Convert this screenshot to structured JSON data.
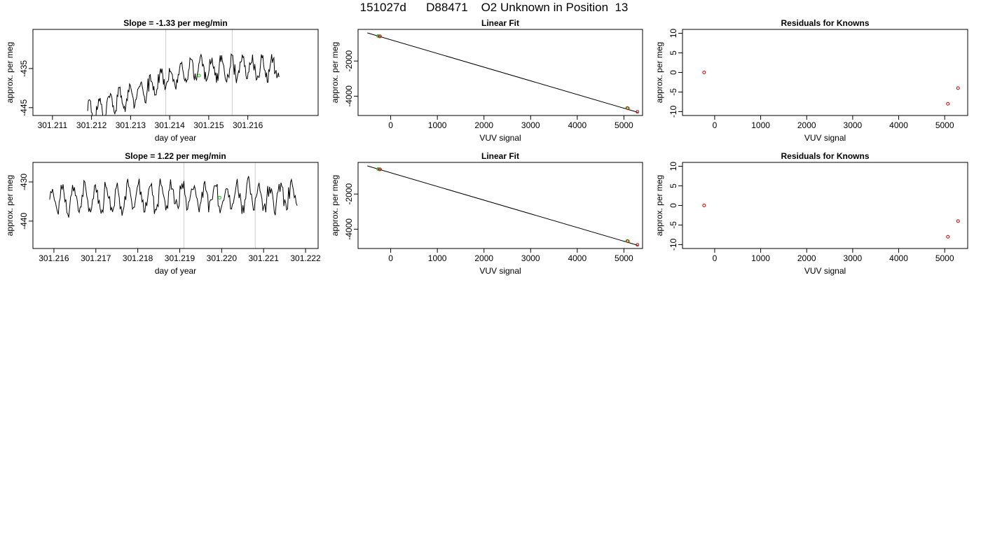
{
  "page": {
    "title": "151027d      D88471    O2 Unknown in Position  13"
  },
  "chart_data": [
    {
      "id": "p1",
      "type": "line",
      "title": "Slope =  -1.33  per meg/min",
      "xlabel": "day of year",
      "ylabel": "approx. per meg",
      "xlim": [
        301.2105,
        301.2178
      ],
      "ylim": [
        -447,
        -425
      ],
      "xticks": [
        "301.211",
        "301.212",
        "301.213",
        "301.214",
        "301.215",
        "301.216"
      ],
      "yticks": [
        "-445",
        "-435"
      ],
      "vlines": [
        301.2139,
        301.2156
      ],
      "series": [
        {
          "x_start": 301.2119,
          "x_end": 301.2168,
          "base_start": -446.5,
          "base_end": -435,
          "amp": 2.6,
          "period": 0.00013,
          "seed": 1,
          "color": "#000000"
        }
      ],
      "markers": [
        {
          "x": 301.21475,
          "y": -436.8,
          "color": "#00cc00"
        }
      ]
    },
    {
      "id": "p2",
      "type": "scatter",
      "title": "Linear Fit",
      "xlabel": "VUV signal",
      "ylabel": "approx. per meg",
      "xlim": [
        -700,
        5400
      ],
      "ylim": [
        -5100,
        -200
      ],
      "xticks": [
        "0",
        "1000",
        "2000",
        "3000",
        "4000",
        "5000"
      ],
      "yticks": [
        "-2000",
        "-4000"
      ],
      "line": {
        "x": [
          -500,
          5300
        ],
        "y": [
          -400,
          -4920
        ]
      },
      "points": [
        {
          "x": -270,
          "y": -580,
          "color": "#00cc00"
        },
        {
          "x": -240,
          "y": -600,
          "color": "#00cc00"
        },
        {
          "x": -230,
          "y": -595,
          "color": "#cc0000"
        },
        {
          "x": 5070,
          "y": -4670,
          "color": "#00cc00"
        },
        {
          "x": 5085,
          "y": -4690,
          "color": "#cc0000"
        },
        {
          "x": 5290,
          "y": -4890,
          "color": "#cc0000"
        }
      ]
    },
    {
      "id": "p3",
      "type": "scatter",
      "title": "Residuals for Knowns",
      "xlabel": "VUV signal",
      "ylabel": "approx. per meg",
      "xlim": [
        -700,
        5500
      ],
      "ylim": [
        -11,
        11
      ],
      "xticks": [
        "0",
        "1000",
        "2000",
        "3000",
        "4000",
        "5000"
      ],
      "yticks": [
        "-10",
        "-5",
        "0",
        "5",
        "10"
      ],
      "points": [
        {
          "x": -230,
          "y": 0,
          "color": "#cc0000"
        },
        {
          "x": 5070,
          "y": -8,
          "color": "#cc0000"
        },
        {
          "x": 5290,
          "y": -4,
          "color": "#cc0000"
        }
      ]
    },
    {
      "id": "p4",
      "type": "line",
      "title": "Slope =  1.22  per meg/min",
      "xlabel": "day of year",
      "ylabel": "approx. per meg",
      "xlim": [
        301.2155,
        301.2223
      ],
      "ylim": [
        -447,
        -425
      ],
      "xticks": [
        "301.216",
        "301.217",
        "301.218",
        "301.219",
        "301.220",
        "301.221",
        "301.222"
      ],
      "yticks": [
        "-440",
        "-430"
      ],
      "vlines": [
        301.2191,
        301.2208
      ],
      "series": [
        {
          "x_start": 301.2159,
          "x_end": 301.2218,
          "base_start": -434.5,
          "base_end": -433.5,
          "amp": 3.3,
          "period": 0.00013,
          "seed": 7,
          "color": "#000000"
        }
      ],
      "markers": [
        {
          "x": 301.21995,
          "y": -434,
          "color": "#00cc00"
        }
      ]
    },
    {
      "id": "p5",
      "type": "scatter",
      "title": "Linear Fit",
      "xlabel": "VUV signal",
      "ylabel": "approx. per meg",
      "xlim": [
        -700,
        5400
      ],
      "ylim": [
        -5100,
        -200
      ],
      "xticks": [
        "0",
        "1000",
        "2000",
        "3000",
        "4000",
        "5000"
      ],
      "yticks": [
        "-2000",
        "-4000"
      ],
      "line": {
        "x": [
          -500,
          5300
        ],
        "y": [
          -400,
          -4920
        ]
      },
      "points": [
        {
          "x": -270,
          "y": -580,
          "color": "#00cc00"
        },
        {
          "x": -240,
          "y": -600,
          "color": "#00cc00"
        },
        {
          "x": -230,
          "y": -595,
          "color": "#cc0000"
        },
        {
          "x": 5070,
          "y": -4670,
          "color": "#00cc00"
        },
        {
          "x": 5085,
          "y": -4690,
          "color": "#cc0000"
        },
        {
          "x": 5290,
          "y": -4890,
          "color": "#cc0000"
        }
      ]
    },
    {
      "id": "p6",
      "type": "scatter",
      "title": "Residuals for Knowns",
      "xlabel": "VUV signal",
      "ylabel": "approx. per meg",
      "xlim": [
        -700,
        5500
      ],
      "ylim": [
        -11,
        11
      ],
      "xticks": [
        "0",
        "1000",
        "2000",
        "3000",
        "4000",
        "5000"
      ],
      "yticks": [
        "-10",
        "-5",
        "0",
        "5",
        "10"
      ],
      "points": [
        {
          "x": -230,
          "y": 0,
          "color": "#cc0000"
        },
        {
          "x": 5070,
          "y": -8,
          "color": "#cc0000"
        },
        {
          "x": 5290,
          "y": -4,
          "color": "#cc0000"
        }
      ]
    }
  ]
}
